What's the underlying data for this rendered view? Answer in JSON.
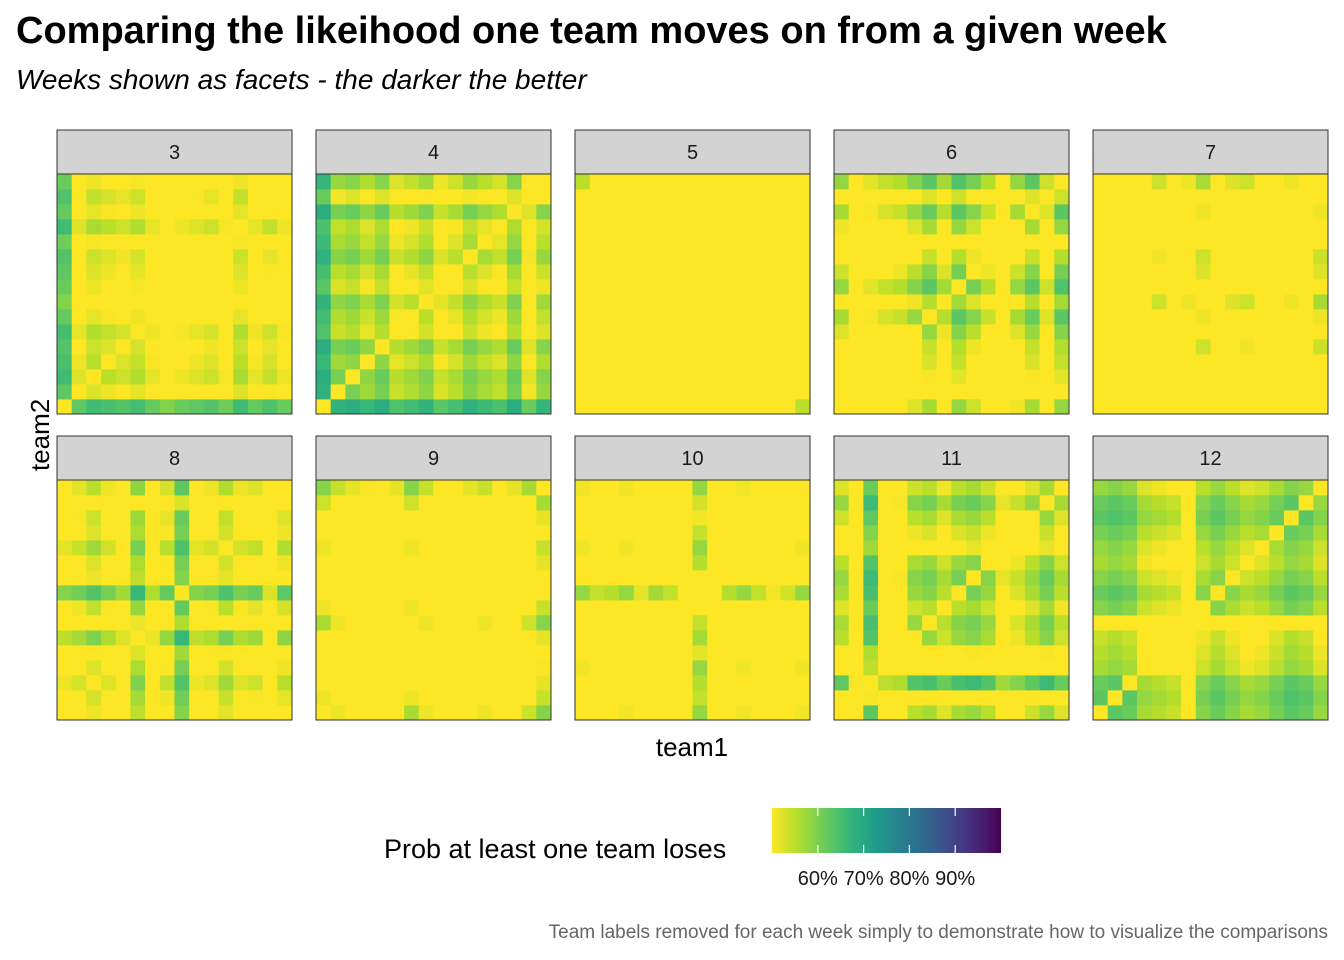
{
  "header": {
    "title": "Comparing the likeihood one team moves on from a given week",
    "subtitle": "Weeks shown as facets - the darker the better"
  },
  "caption": "Team labels removed for each week simply to demonstrate how to visualize the comparisons",
  "colors": {
    "strip_fill": "#d3d3d3",
    "strip_border": "#333333",
    "panel_border": "#333333",
    "viridis_low": "#fde725",
    "viridis_high": "#440154"
  },
  "chart_data": {
    "type": "heatmap",
    "title": "Comparing the likeihood one team moves on from a given week",
    "subtitle": "Weeks shown as facets - the darker the better",
    "xlabel": "team1",
    "ylabel": "team2",
    "facet_by": "week",
    "facets": [
      "3",
      "4",
      "5",
      "6",
      "7",
      "8",
      "9",
      "10",
      "11",
      "12"
    ],
    "teams_per_facet": 16,
    "axis_tick_labels": "none",
    "fill_variable": "Prob at least one team loses",
    "fill_scale": {
      "palette": "viridis (reversed)",
      "limits": [
        0.5,
        1.0
      ],
      "breaks": [
        0.6,
        0.7,
        0.8,
        0.9
      ],
      "labels": [
        "60%",
        "70%",
        "80%",
        "90%"
      ]
    },
    "legend": {
      "title": "Prob at least one team loses",
      "position": "bottom"
    },
    "team_win_prob": {
      "3": [
        0.52,
        0.72,
        0.66,
        0.68,
        0.7,
        0.67,
        0.73,
        0.78,
        0.74,
        0.72,
        0.7,
        0.75,
        0.66,
        0.73,
        0.69,
        0.74
      ],
      "4": [
        0.5,
        0.64,
        0.62,
        0.67,
        0.62,
        0.72,
        0.69,
        0.65,
        0.74,
        0.7,
        0.64,
        0.68,
        0.71,
        0.62,
        0.77,
        0.66
      ],
      "5": [
        0.66,
        0.87,
        0.84,
        0.82,
        0.85,
        0.79,
        0.76,
        0.83,
        0.85,
        0.88,
        0.8,
        0.84,
        0.86,
        0.83,
        0.77,
        0.68
      ],
      "6": [
        0.7,
        0.9,
        0.8,
        0.76,
        0.74,
        0.68,
        0.62,
        0.72,
        0.6,
        0.66,
        0.74,
        0.9,
        0.7,
        0.62,
        0.77,
        0.6
      ],
      "7": [
        0.76,
        0.8,
        0.8,
        0.82,
        0.7,
        0.78,
        0.74,
        0.66,
        0.84,
        0.72,
        0.7,
        0.8,
        0.86,
        0.74,
        0.82,
        0.66
      ],
      "8": [
        0.74,
        0.71,
        0.66,
        0.72,
        0.78,
        0.61,
        0.8,
        0.69,
        0.55,
        0.74,
        0.72,
        0.65,
        0.72,
        0.7,
        0.86,
        0.68
      ],
      "9": [
        0.66,
        0.74,
        0.78,
        0.8,
        0.82,
        0.78,
        0.66,
        0.74,
        0.82,
        0.9,
        0.78,
        0.74,
        0.82,
        0.78,
        0.7,
        0.62
      ],
      "10": [
        0.7,
        0.76,
        0.74,
        0.7,
        0.8,
        0.72,
        0.76,
        0.86,
        0.6,
        0.84,
        0.74,
        0.7,
        0.76,
        0.82,
        0.78,
        0.7
      ],
      "11": [
        0.68,
        0.9,
        0.55,
        0.82,
        0.8,
        0.66,
        0.64,
        0.7,
        0.64,
        0.62,
        0.66,
        0.78,
        0.74,
        0.68,
        0.62,
        0.7
      ],
      "12": [
        0.62,
        0.6,
        0.62,
        0.7,
        0.72,
        0.74,
        0.9,
        0.66,
        0.62,
        0.66,
        0.7,
        0.68,
        0.64,
        0.6,
        0.62,
        0.68
      ]
    },
    "cell_value_rule": "1 - win_prob(team1) * win_prob(team2); diagonal is 1 - win_prob(team)"
  }
}
